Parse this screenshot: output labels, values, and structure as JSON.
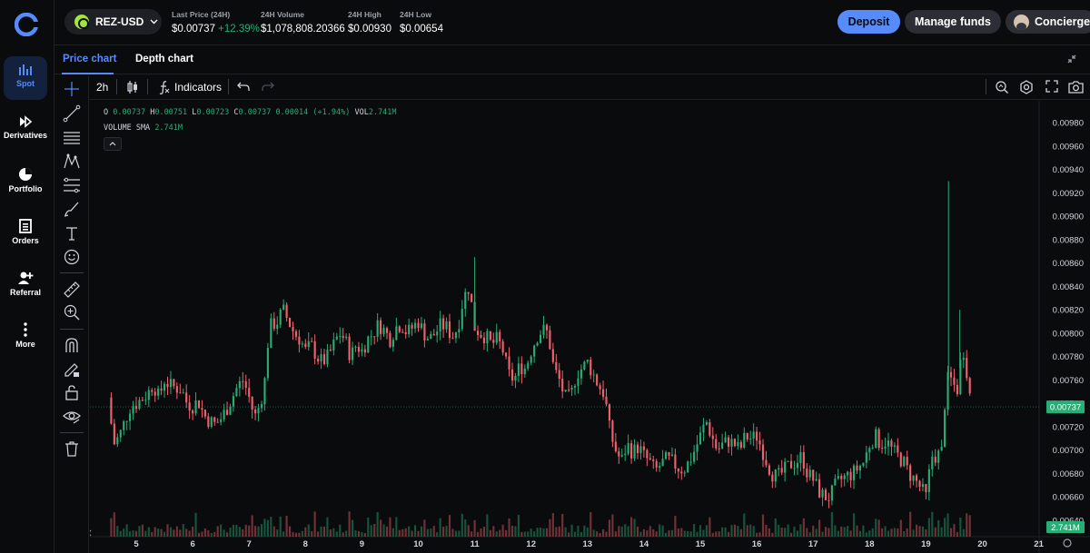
{
  "nav": {
    "items": [
      {
        "label": "Spot",
        "icon": "spot-chart-icon",
        "active": true
      },
      {
        "label": "Derivatives",
        "icon": "derivatives-icon",
        "active": false
      },
      {
        "label": "Portfolio",
        "icon": "pie-chart-icon",
        "active": false
      },
      {
        "label": "Orders",
        "icon": "orders-list-icon",
        "active": false
      },
      {
        "label": "Referral",
        "icon": "add-user-icon",
        "active": false
      },
      {
        "label": "More",
        "icon": "more-vertical-icon",
        "active": false
      }
    ]
  },
  "header": {
    "pair": "REZ-USD",
    "stats": [
      {
        "label": "Last Price (24H)",
        "value": "$0.00737",
        "change": "+12.39%"
      },
      {
        "label": "24H Volume",
        "value": "$1,078,808.20366"
      },
      {
        "label": "24H High",
        "value": "$0.00930"
      },
      {
        "label": "24H Low",
        "value": "$0.00654"
      }
    ],
    "deposit_label": "Deposit",
    "manage_label": "Manage funds",
    "concierge_label": "Concierge"
  },
  "tabs": [
    {
      "label": "Price chart",
      "active": true
    },
    {
      "label": "Depth chart",
      "active": false
    }
  ],
  "toolbar": {
    "timeframe": "2h",
    "indicators_label": "Indicators"
  },
  "legend": {
    "o_label": "O",
    "o": "0.00737",
    "h_label": "H",
    "h": "0.00751",
    "l_label": "L",
    "l": "0.00723",
    "c_label": "C",
    "c": "0.00737",
    "change": "0.00014 (+1.94%)",
    "vol_label": "VOL",
    "vol": "2.741M",
    "sma_label": "VOLUME SMA",
    "sma": "2.741M"
  },
  "colors": {
    "up": "#27ad75",
    "down": "#f0616d",
    "accent": "#578bfa",
    "background": "#0a0b0d"
  },
  "chart_data": {
    "type": "candlestick",
    "y_ticks": [
      "0.00980",
      "0.00960",
      "0.00940",
      "0.00920",
      "0.00900",
      "0.00880",
      "0.00860",
      "0.00840",
      "0.00820",
      "0.00800",
      "0.00780",
      "0.00760",
      "0.00740",
      "0.00720",
      "0.00700",
      "0.00680",
      "0.00660",
      "0.00640"
    ],
    "ylim": [
      0.00626,
      0.00991
    ],
    "x_ticks": [
      "5",
      "6",
      "7",
      "8",
      "9",
      "10",
      "11",
      "12",
      "13",
      "14",
      "15",
      "16",
      "17",
      "18",
      "19",
      "20",
      "21"
    ],
    "last_price_label": "0.00737",
    "last_price": 0.00737,
    "volume_label": "2.741M",
    "close_path": [
      [
        4.5,
        0.00745
      ],
      [
        4.6,
        0.00705
      ],
      [
        4.7,
        0.00712
      ],
      [
        4.8,
        0.00725
      ],
      [
        4.9,
        0.00738
      ],
      [
        5.0,
        0.0074
      ],
      [
        5.2,
        0.00748
      ],
      [
        5.3,
        0.00757
      ],
      [
        5.4,
        0.00745
      ],
      [
        5.5,
        0.0076
      ],
      [
        5.6,
        0.00755
      ],
      [
        5.8,
        0.00752
      ],
      [
        5.9,
        0.0074
      ],
      [
        6.0,
        0.00738
      ],
      [
        6.1,
        0.00742
      ],
      [
        6.2,
        0.0073
      ],
      [
        6.3,
        0.00725
      ],
      [
        6.4,
        0.00722
      ],
      [
        6.5,
        0.00727
      ],
      [
        6.6,
        0.00735
      ],
      [
        6.7,
        0.00745
      ],
      [
        6.8,
        0.00755
      ],
      [
        6.9,
        0.0076
      ],
      [
        7.0,
        0.00745
      ],
      [
        7.1,
        0.00728
      ],
      [
        7.2,
        0.0074
      ],
      [
        7.3,
        0.00765
      ],
      [
        7.35,
        0.00805
      ],
      [
        7.5,
        0.0081
      ],
      [
        7.6,
        0.0082
      ],
      [
        7.7,
        0.0081
      ],
      [
        7.8,
        0.008
      ],
      [
        7.9,
        0.00795
      ],
      [
        8.0,
        0.00785
      ],
      [
        8.1,
        0.0079
      ],
      [
        8.2,
        0.0078
      ],
      [
        8.3,
        0.00775
      ],
      [
        8.4,
        0.0078
      ],
      [
        8.5,
        0.0079
      ],
      [
        8.6,
        0.008
      ],
      [
        8.7,
        0.00795
      ],
      [
        8.8,
        0.0078
      ],
      [
        8.9,
        0.0079
      ],
      [
        9.0,
        0.00785
      ],
      [
        9.1,
        0.00795
      ],
      [
        9.2,
        0.008
      ],
      [
        9.3,
        0.00808
      ],
      [
        9.4,
        0.00802
      ],
      [
        9.5,
        0.00795
      ],
      [
        9.6,
        0.00805
      ],
      [
        9.7,
        0.00808
      ],
      [
        9.8,
        0.008
      ],
      [
        9.9,
        0.00805
      ],
      [
        10.0,
        0.0081
      ],
      [
        10.1,
        0.008
      ],
      [
        10.2,
        0.00795
      ],
      [
        10.3,
        0.008
      ],
      [
        10.4,
        0.00807
      ],
      [
        10.5,
        0.00805
      ],
      [
        10.6,
        0.00797
      ],
      [
        10.7,
        0.00805
      ],
      [
        10.8,
        0.0083
      ],
      [
        10.9,
        0.0084
      ],
      [
        11.0,
        0.00805
      ],
      [
        11.1,
        0.008
      ],
      [
        11.2,
        0.00797
      ],
      [
        11.3,
        0.0079
      ],
      [
        11.4,
        0.00795
      ],
      [
        11.5,
        0.00785
      ],
      [
        11.6,
        0.00765
      ],
      [
        11.7,
        0.0076
      ],
      [
        11.8,
        0.00772
      ],
      [
        11.9,
        0.0077
      ],
      [
        12.0,
        0.00785
      ],
      [
        12.1,
        0.00797
      ],
      [
        12.2,
        0.00803
      ],
      [
        12.3,
        0.008
      ],
      [
        12.4,
        0.0077
      ],
      [
        12.5,
        0.0076
      ],
      [
        12.6,
        0.00745
      ],
      [
        12.7,
        0.00745
      ],
      [
        12.8,
        0.00765
      ],
      [
        12.9,
        0.0077
      ],
      [
        13.0,
        0.00775
      ],
      [
        13.1,
        0.00765
      ],
      [
        13.2,
        0.00755
      ],
      [
        13.3,
        0.00748
      ],
      [
        13.4,
        0.00715
      ],
      [
        13.5,
        0.007
      ],
      [
        13.6,
        0.0069
      ],
      [
        13.7,
        0.00705
      ],
      [
        13.8,
        0.00698
      ],
      [
        13.9,
        0.00703
      ],
      [
        14.0,
        0.00695
      ],
      [
        14.1,
        0.0069
      ],
      [
        14.2,
        0.00682
      ],
      [
        14.3,
        0.00688
      ],
      [
        14.4,
        0.00692
      ],
      [
        14.5,
        0.0069
      ],
      [
        14.6,
        0.00685
      ],
      [
        14.7,
        0.00683
      ],
      [
        14.8,
        0.0069
      ],
      [
        14.9,
        0.007
      ],
      [
        15.0,
        0.00712
      ],
      [
        15.1,
        0.00725
      ],
      [
        15.2,
        0.00712
      ],
      [
        15.3,
        0.007
      ],
      [
        15.4,
        0.00705
      ],
      [
        15.5,
        0.00708
      ],
      [
        15.6,
        0.00705
      ],
      [
        15.7,
        0.007
      ],
      [
        15.8,
        0.00712
      ],
      [
        15.9,
        0.0071
      ],
      [
        16.0,
        0.00712
      ],
      [
        16.1,
        0.007
      ],
      [
        16.2,
        0.00687
      ],
      [
        16.3,
        0.00678
      ],
      [
        16.4,
        0.00678
      ],
      [
        16.5,
        0.00683
      ],
      [
        16.6,
        0.00688
      ],
      [
        16.7,
        0.0069
      ],
      [
        16.8,
        0.00695
      ],
      [
        16.9,
        0.0068
      ],
      [
        17.0,
        0.00675
      ],
      [
        17.1,
        0.00665
      ],
      [
        17.2,
        0.0066
      ],
      [
        17.3,
        0.0066
      ],
      [
        17.4,
        0.0067
      ],
      [
        17.5,
        0.00675
      ],
      [
        17.6,
        0.00678
      ],
      [
        17.7,
        0.0068
      ],
      [
        17.8,
        0.00685
      ],
      [
        17.9,
        0.0069
      ],
      [
        18.0,
        0.00705
      ],
      [
        18.1,
        0.00712
      ],
      [
        18.2,
        0.00705
      ],
      [
        18.3,
        0.00708
      ],
      [
        18.4,
        0.007
      ],
      [
        18.5,
        0.00695
      ],
      [
        18.6,
        0.0069
      ],
      [
        18.7,
        0.0068
      ],
      [
        18.8,
        0.00675
      ],
      [
        18.9,
        0.00668
      ],
      [
        19.0,
        0.0066
      ],
      [
        19.1,
        0.00695
      ],
      [
        19.2,
        0.00695
      ],
      [
        19.3,
        0.007
      ],
      [
        19.35,
        0.0076
      ],
      [
        19.45,
        0.0076
      ],
      [
        19.55,
        0.0075
      ],
      [
        19.65,
        0.0079
      ],
      [
        19.75,
        0.0076
      ],
      [
        19.8,
        0.00737
      ]
    ],
    "highlight_wicks": [
      [
        11.0,
        0.00865
      ],
      [
        19.4,
        0.0093
      ],
      [
        19.6,
        0.0082
      ]
    ]
  }
}
